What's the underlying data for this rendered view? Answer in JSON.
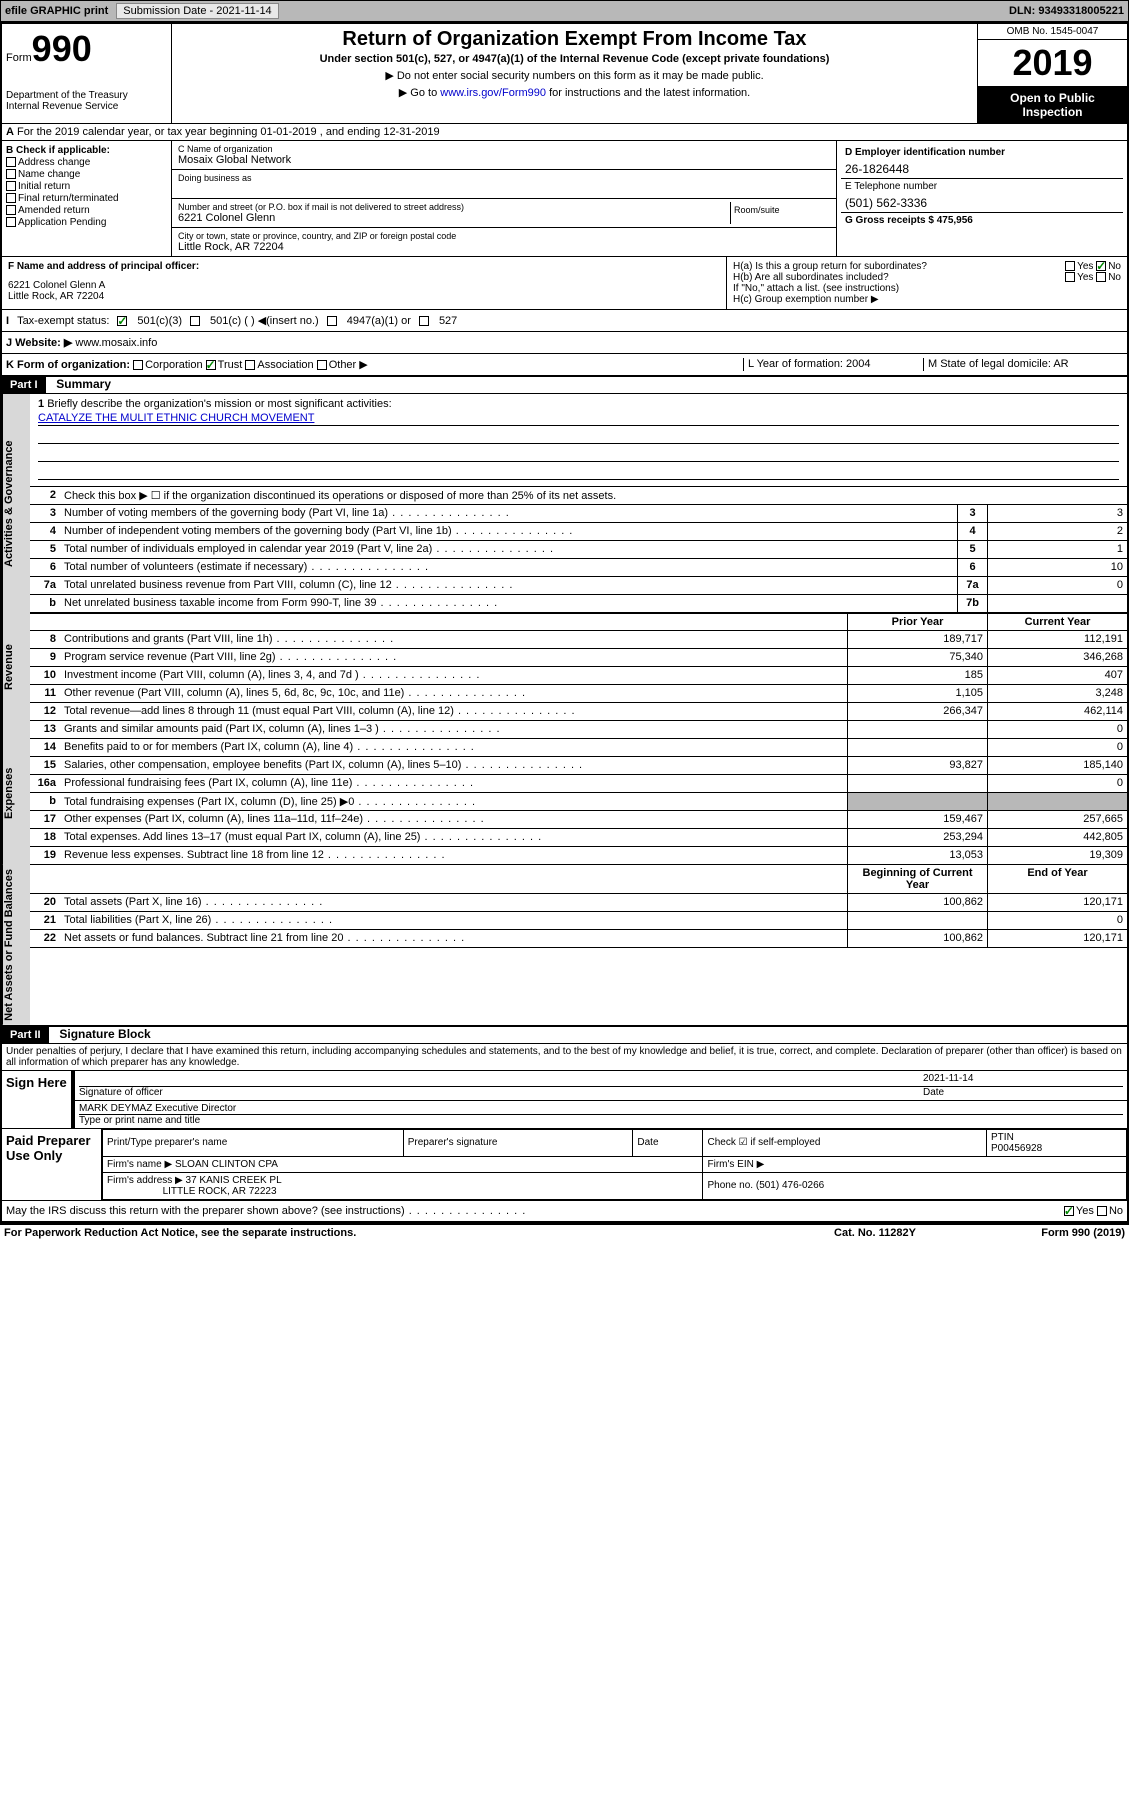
{
  "topbar": {
    "efile": "efile GRAPHIC print",
    "submission_label": "Submission Date - 2021-11-14",
    "dln": "DLN: 93493318005221"
  },
  "header": {
    "form_label": "Form",
    "form_number": "990",
    "dept1": "Department of the Treasury",
    "dept2": "Internal Revenue Service",
    "title": "Return of Organization Exempt From Income Tax",
    "subtitle": "Under section 501(c), 527, or 4947(a)(1) of the Internal Revenue Code (except private foundations)",
    "instr1": "▶ Do not enter social security numbers on this form as it may be made public.",
    "instr2_pre": "▶ Go to ",
    "instr2_link": "www.irs.gov/Form990",
    "instr2_post": " for instructions and the latest information.",
    "omb": "OMB No. 1545-0047",
    "year": "2019",
    "inspection": "Open to Public Inspection"
  },
  "section_a": "For the 2019 calendar year, or tax year beginning 01-01-2019   , and ending 12-31-2019",
  "section_b": {
    "label": "B Check if applicable:",
    "opts": [
      "Address change",
      "Name change",
      "Initial return",
      "Final return/terminated",
      "Amended return",
      "Application Pending"
    ]
  },
  "section_c": {
    "name_label": "C Name of organization",
    "name": "Mosaix Global Network",
    "dba_label": "Doing business as",
    "street_label": "Number and street (or P.O. box if mail is not delivered to street address)",
    "street": "6221 Colonel Glenn",
    "room_label": "Room/suite",
    "city_label": "City or town, state or province, country, and ZIP or foreign postal code",
    "city": "Little Rock, AR  72204"
  },
  "section_d": {
    "label": "D Employer identification number",
    "value": "26-1826448"
  },
  "section_e": {
    "label": "E Telephone number",
    "value": "(501) 562-3336"
  },
  "section_g": {
    "label": "G Gross receipts $ 475,956"
  },
  "section_f": {
    "label": "F  Name and address of principal officer:",
    "line1": "6221 Colonel Glenn A",
    "line2": "Little Rock, AR  72204"
  },
  "section_h": {
    "ha": "H(a)  Is this a group return for subordinates?",
    "hb": "H(b)  Are all subordinates included?",
    "hb_note": "If \"No,\" attach a list. (see instructions)",
    "hc": "H(c)  Group exemption number ▶"
  },
  "tax_status": {
    "label": "Tax-exempt status:",
    "opt1": "501(c)(3)",
    "opt2": "501(c) (  ) ◀(insert no.)",
    "opt3": "4947(a)(1) or",
    "opt4": "527"
  },
  "website": {
    "label": "J    Website: ▶",
    "value": "www.mosaix.info"
  },
  "section_k": {
    "label": "K Form of organization:",
    "opts": [
      "Corporation",
      "Trust",
      "Association",
      "Other ▶"
    ],
    "l": "L Year of formation: 2004",
    "m": "M State of legal domicile: AR"
  },
  "part1": {
    "header": "Part I",
    "title": "Summary",
    "line1_label": "Briefly describe the organization's mission or most significant activities:",
    "mission": "CATALYZE THE MULIT ETHNIC CHURCH MOVEMENT",
    "line2": "Check this box ▶ ☐  if the organization discontinued its operations or disposed of more than 25% of its net assets.",
    "vert_gov": "Activities & Governance",
    "vert_rev": "Revenue",
    "vert_exp": "Expenses",
    "vert_net": "Net Assets or Fund Balances",
    "col_prior": "Prior Year",
    "col_current": "Current Year",
    "col_begin": "Beginning of Current Year",
    "col_end": "End of Year",
    "lines_gov": [
      {
        "n": "3",
        "t": "Number of voting members of the governing body (Part VI, line 1a)",
        "box": "3",
        "v": "3"
      },
      {
        "n": "4",
        "t": "Number of independent voting members of the governing body (Part VI, line 1b)",
        "box": "4",
        "v": "2"
      },
      {
        "n": "5",
        "t": "Total number of individuals employed in calendar year 2019 (Part V, line 2a)",
        "box": "5",
        "v": "1"
      },
      {
        "n": "6",
        "t": "Total number of volunteers (estimate if necessary)",
        "box": "6",
        "v": "10"
      },
      {
        "n": "7a",
        "t": "Total unrelated business revenue from Part VIII, column (C), line 12",
        "box": "7a",
        "v": "0"
      },
      {
        "n": "b",
        "t": "Net unrelated business taxable income from Form 990-T, line 39",
        "box": "7b",
        "v": ""
      }
    ],
    "lines_rev": [
      {
        "n": "8",
        "t": "Contributions and grants (Part VIII, line 1h)",
        "p": "189,717",
        "c": "112,191"
      },
      {
        "n": "9",
        "t": "Program service revenue (Part VIII, line 2g)",
        "p": "75,340",
        "c": "346,268"
      },
      {
        "n": "10",
        "t": "Investment income (Part VIII, column (A), lines 3, 4, and 7d )",
        "p": "185",
        "c": "407"
      },
      {
        "n": "11",
        "t": "Other revenue (Part VIII, column (A), lines 5, 6d, 8c, 9c, 10c, and 11e)",
        "p": "1,105",
        "c": "3,248"
      },
      {
        "n": "12",
        "t": "Total revenue—add lines 8 through 11 (must equal Part VIII, column (A), line 12)",
        "p": "266,347",
        "c": "462,114"
      }
    ],
    "lines_exp": [
      {
        "n": "13",
        "t": "Grants and similar amounts paid (Part IX, column (A), lines 1–3 )",
        "p": "",
        "c": "0"
      },
      {
        "n": "14",
        "t": "Benefits paid to or for members (Part IX, column (A), line 4)",
        "p": "",
        "c": "0"
      },
      {
        "n": "15",
        "t": "Salaries, other compensation, employee benefits (Part IX, column (A), lines 5–10)",
        "p": "93,827",
        "c": "185,140"
      },
      {
        "n": "16a",
        "t": "Professional fundraising fees (Part IX, column (A), line 11e)",
        "p": "",
        "c": "0"
      },
      {
        "n": "b",
        "t": "Total fundraising expenses (Part IX, column (D), line 25) ▶0",
        "p": "shaded",
        "c": "shaded"
      },
      {
        "n": "17",
        "t": "Other expenses (Part IX, column (A), lines 11a–11d, 11f–24e)",
        "p": "159,467",
        "c": "257,665"
      },
      {
        "n": "18",
        "t": "Total expenses. Add lines 13–17 (must equal Part IX, column (A), line 25)",
        "p": "253,294",
        "c": "442,805"
      },
      {
        "n": "19",
        "t": "Revenue less expenses. Subtract line 18 from line 12",
        "p": "13,053",
        "c": "19,309"
      }
    ],
    "lines_net": [
      {
        "n": "20",
        "t": "Total assets (Part X, line 16)",
        "p": "100,862",
        "c": "120,171"
      },
      {
        "n": "21",
        "t": "Total liabilities (Part X, line 26)",
        "p": "",
        "c": "0"
      },
      {
        "n": "22",
        "t": "Net assets or fund balances. Subtract line 21 from line 20",
        "p": "100,862",
        "c": "120,171"
      }
    ]
  },
  "part2": {
    "header": "Part II",
    "title": "Signature Block",
    "declaration": "Under penalties of perjury, I declare that I have examined this return, including accompanying schedules and statements, and to the best of my knowledge and belief, it is true, correct, and complete. Declaration of preparer (other than officer) is based on all information of which preparer has any knowledge.",
    "sign_here": "Sign Here",
    "sig_officer": "Signature of officer",
    "sig_date": "2021-11-14",
    "sig_date_label": "Date",
    "officer_name": "MARK DEYMAZ Executive Director",
    "officer_name_label": "Type or print name and title",
    "paid_prep": "Paid Preparer Use Only",
    "prep_name_label": "Print/Type preparer's name",
    "prep_sig_label": "Preparer's signature",
    "prep_date_label": "Date",
    "prep_check": "Check ☑ if self-employed",
    "ptin_label": "PTIN",
    "ptin": "P00456928",
    "firm_name_label": "Firm's name    ▶",
    "firm_name": "SLOAN CLINTON CPA",
    "firm_ein_label": "Firm's EIN ▶",
    "firm_addr_label": "Firm's address ▶",
    "firm_addr1": "37 KANIS CREEK PL",
    "firm_addr2": "LITTLE ROCK, AR  72223",
    "firm_phone": "Phone no. (501) 476-0266",
    "discuss": "May the IRS discuss this return with the preparer shown above? (see instructions)"
  },
  "footer": {
    "left": "For Paperwork Reduction Act Notice, see the separate instructions.",
    "mid": "Cat. No. 11282Y",
    "right": "Form 990 (2019)"
  },
  "yesno": {
    "yes": "Yes",
    "no": "No"
  }
}
